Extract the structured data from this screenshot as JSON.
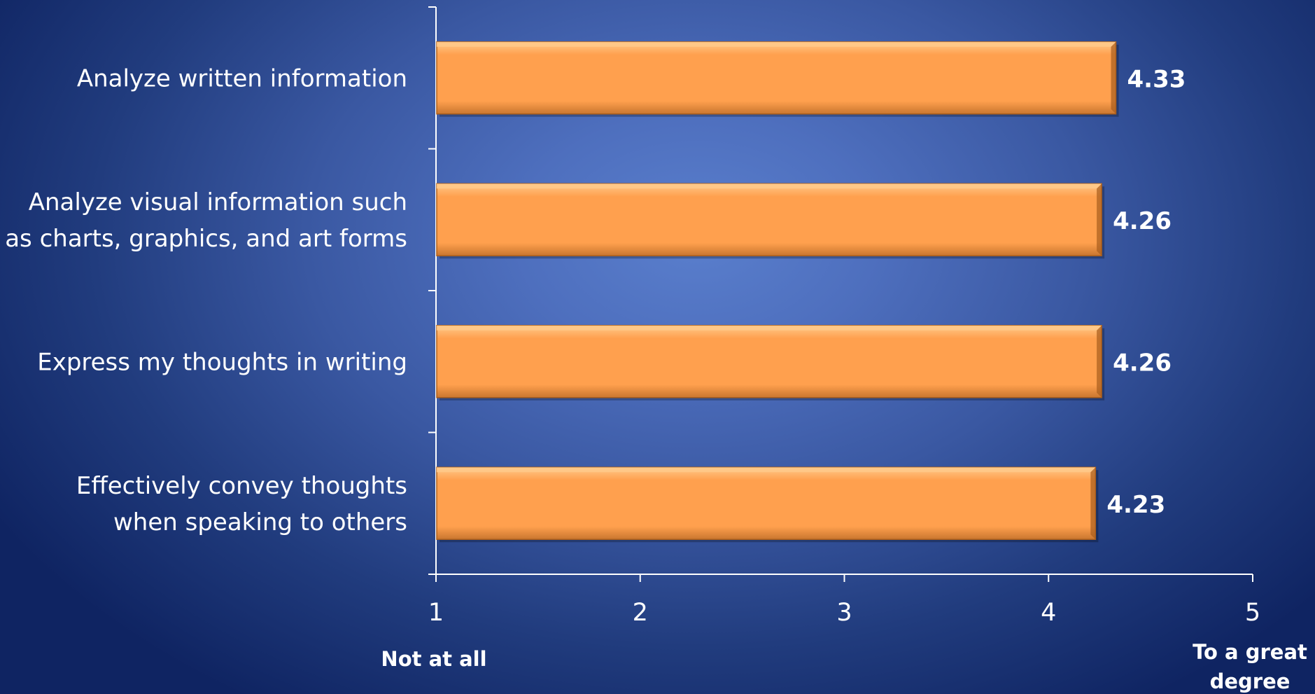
{
  "chart_data": {
    "type": "bar",
    "orientation": "horizontal",
    "categories": [
      [
        "Analyze written information"
      ],
      [
        "Analyze visual information such",
        "as charts, graphics, and art forms"
      ],
      [
        "Express my thoughts in writing"
      ],
      [
        "Effectively convey thoughts",
        "when speaking to others"
      ]
    ],
    "values": [
      4.33,
      4.26,
      4.26,
      4.23
    ],
    "value_labels": [
      "4.33",
      "4.26",
      "4.26",
      "4.23"
    ],
    "xlim": [
      1,
      5
    ],
    "x_ticks": [
      "1",
      "2",
      "3",
      "4",
      "5"
    ],
    "x_anchor_labels": {
      "min": [
        "Not at all"
      ],
      "max": [
        "To a great",
        "degree"
      ]
    },
    "title": "",
    "xlabel": "",
    "ylabel": "",
    "grid": false,
    "legend": "none",
    "colors": {
      "bar_fill": "#ffa04e",
      "bar_highlight": "#ffc98a",
      "bar_shadow": "#a85d1c",
      "axis": "#ffffff",
      "text": "#ffffff"
    }
  }
}
